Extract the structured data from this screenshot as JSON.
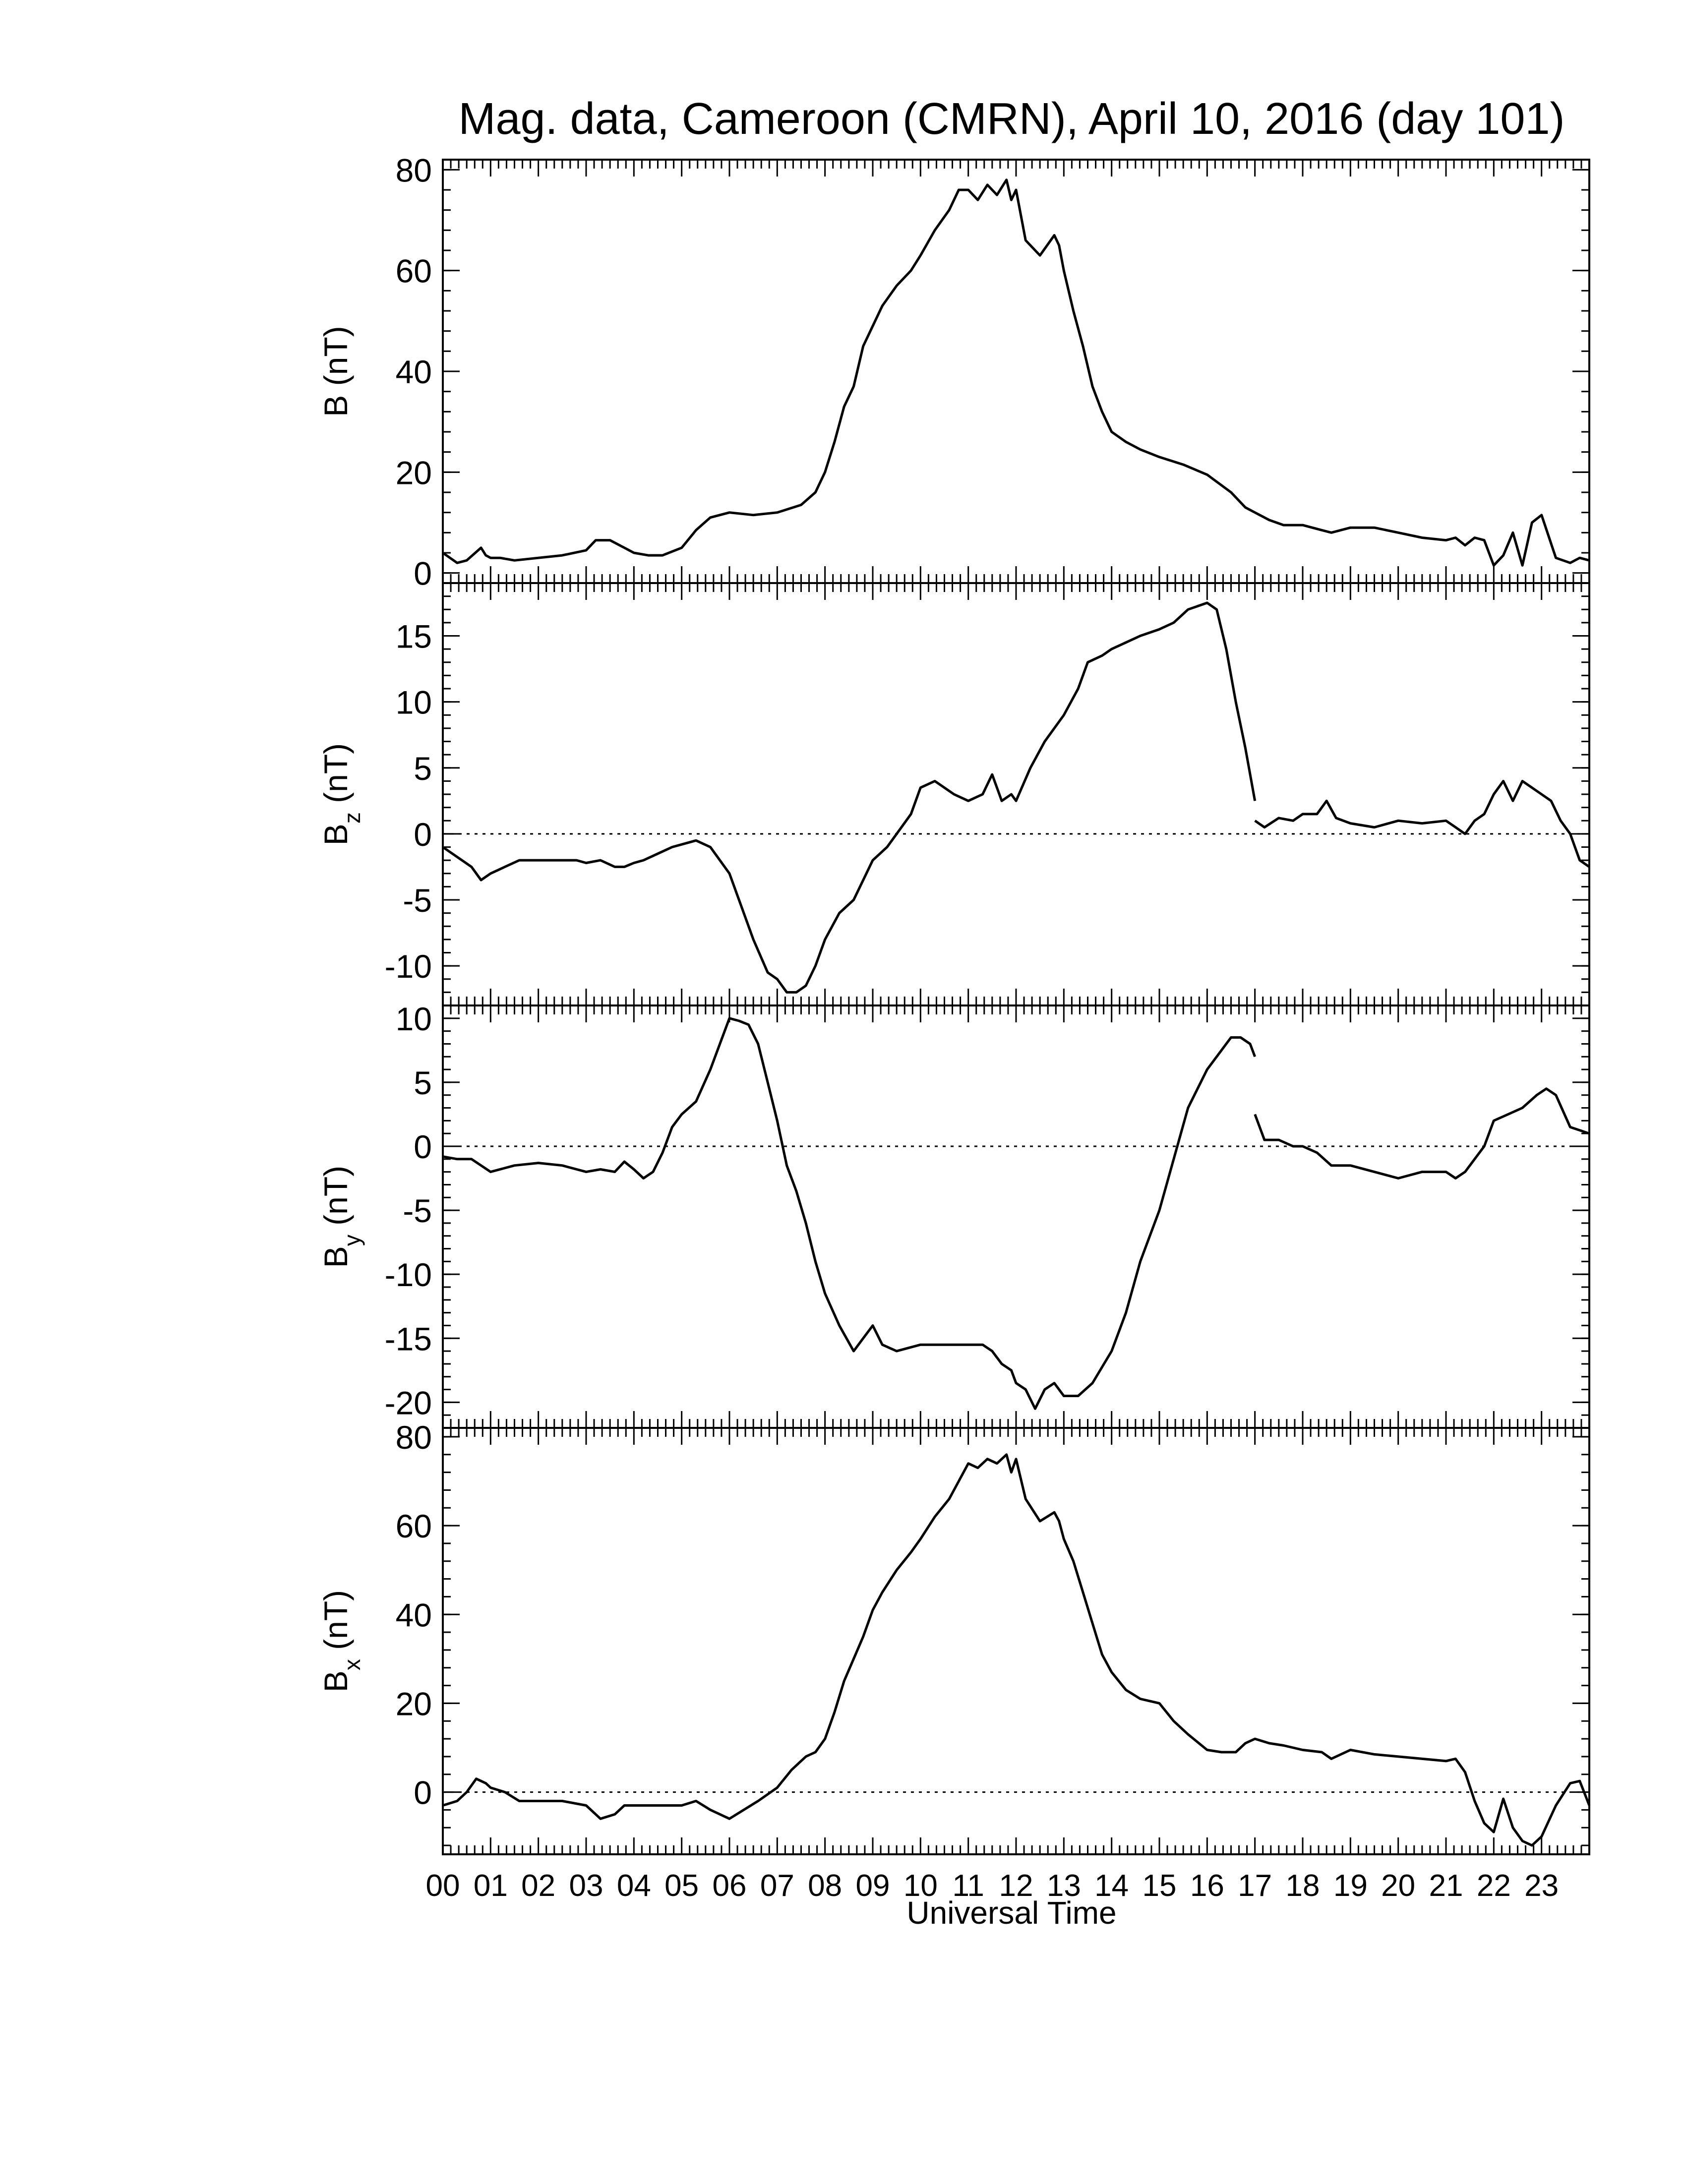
{
  "chart_data": {
    "type": "line",
    "title": "Mag. data, Cameroon (CMRN), April 10, 2016 (day 101)",
    "xlabel": "Universal Time",
    "x_unit": "hours UT",
    "xlim": [
      0,
      24
    ],
    "x_tick_labels": [
      "00",
      "01",
      "02",
      "03",
      "04",
      "05",
      "06",
      "07",
      "08",
      "09",
      "10",
      "11",
      "12",
      "13",
      "14",
      "15",
      "16",
      "17",
      "18",
      "19",
      "20",
      "21",
      "22",
      "23"
    ],
    "line_color": "#000000",
    "zero_line": "dotted",
    "panels": [
      {
        "id": "B",
        "ylabel_main": "B",
        "ylabel_sub": "",
        "ylabel_unit": "(nT)",
        "ylim": [
          -2,
          82
        ],
        "yticks": [
          0,
          20,
          40,
          60,
          80
        ],
        "zero_line": false,
        "x": [
          0,
          0.3,
          0.5,
          0.8,
          0.9,
          1.0,
          1.2,
          1.5,
          2.0,
          2.5,
          3.0,
          3.2,
          3.5,
          3.8,
          4.0,
          4.3,
          4.6,
          5.0,
          5.3,
          5.6,
          6.0,
          6.5,
          7.0,
          7.5,
          7.8,
          8.0,
          8.2,
          8.4,
          8.6,
          8.8,
          9.0,
          9.2,
          9.5,
          9.8,
          10.0,
          10.3,
          10.6,
          10.8,
          11.0,
          11.2,
          11.4,
          11.6,
          11.8,
          11.9,
          12.0,
          12.2,
          12.5,
          12.8,
          12.9,
          13.0,
          13.2,
          13.4,
          13.6,
          13.8,
          14.0,
          14.3,
          14.6,
          15.0,
          15.5,
          16.0,
          16.5,
          16.8,
          17.0,
          17.3,
          17.6,
          18.0,
          18.4,
          18.6,
          19.0,
          19.5,
          20.0,
          20.5,
          21.0,
          21.2,
          21.4,
          21.6,
          21.8,
          22.0,
          22.2,
          22.4,
          22.6,
          22.8,
          23.0,
          23.3,
          23.6,
          23.8,
          24.0
        ],
        "values": [
          4,
          2,
          2.5,
          5,
          3.5,
          3,
          3,
          2.5,
          3,
          3.5,
          4.5,
          6.5,
          6.5,
          5,
          4,
          3.5,
          3.5,
          5,
          8.5,
          11,
          12,
          11.5,
          12,
          13.5,
          16,
          20,
          26,
          33,
          37,
          45,
          49,
          53,
          57,
          60,
          63,
          68,
          72,
          76,
          76,
          74,
          77,
          75,
          78,
          74,
          76,
          66,
          63,
          67,
          65,
          60,
          52,
          45,
          37,
          32,
          28,
          26,
          24.5,
          23,
          21.5,
          19.5,
          16,
          13,
          12,
          10.5,
          9.5,
          9.5,
          8.5,
          8,
          9,
          9,
          8,
          7,
          6.5,
          7,
          5.5,
          7,
          6.5,
          1.5,
          3.5,
          8,
          1.5,
          10,
          11.5,
          3,
          2,
          3,
          2.5
        ]
      },
      {
        "id": "Bz",
        "ylabel_main": "B",
        "ylabel_sub": "z",
        "ylabel_unit": "(nT)",
        "ylim": [
          -13,
          19
        ],
        "yticks": [
          -10,
          -5,
          0,
          5,
          10,
          15
        ],
        "zero_line": true,
        "x": [
          0,
          0.2,
          0.4,
          0.6,
          0.8,
          1.0,
          1.3,
          1.6,
          2.0,
          2.4,
          2.8,
          3.0,
          3.3,
          3.6,
          3.8,
          4.0,
          4.2,
          4.5,
          4.8,
          5.0,
          5.3,
          5.6,
          6.0,
          6.2,
          6.5,
          6.8,
          7.0,
          7.2,
          7.4,
          7.6,
          7.8,
          8.0,
          8.3,
          8.6,
          9.0,
          9.3,
          9.6,
          9.8,
          10.0,
          10.3,
          10.5,
          10.7,
          11.0,
          11.3,
          11.5,
          11.7,
          11.9,
          12.0,
          12.3,
          12.6,
          13.0,
          13.3,
          13.5,
          13.8,
          14.0,
          14.3,
          14.6,
          15.0,
          15.3,
          15.6,
          16.0,
          16.2,
          16.4,
          16.6,
          16.8,
          17.0
        ],
        "values": [
          -1,
          -1.5,
          -2,
          -2.5,
          -3.5,
          -3,
          -2.5,
          -2,
          -2,
          -2,
          -2,
          -2.2,
          -2,
          -2.5,
          -2.5,
          -2.2,
          -2,
          -1.5,
          -1,
          -0.8,
          -0.5,
          -1,
          -3,
          -5,
          -8,
          -10.5,
          -11,
          -12,
          -12,
          -11.5,
          -10,
          -8,
          -6,
          -5,
          -2,
          -1,
          0.5,
          1.5,
          3.5,
          4,
          3.5,
          3,
          2.5,
          3,
          4.5,
          2.5,
          3,
          2.5,
          5,
          7,
          9,
          11,
          13,
          13.5,
          14,
          14.5,
          15,
          15.5,
          16,
          17,
          17.5,
          17,
          14,
          10,
          6.5,
          2.5
        ],
        "x2": [
          17.0,
          17.2,
          17.5,
          17.8,
          18.0,
          18.3,
          18.5,
          18.7,
          19.0,
          19.5,
          20.0,
          20.5,
          21.0,
          21.2,
          21.4,
          21.6,
          21.8,
          22.0,
          22.2,
          22.4,
          22.6,
          22.8,
          23.0,
          23.2,
          23.4,
          23.6,
          23.8,
          24.0
        ],
        "values2": [
          1.0,
          0.5,
          1.2,
          1.0,
          1.5,
          1.5,
          2.5,
          1.2,
          0.8,
          0.5,
          1.0,
          0.8,
          1.0,
          0.5,
          0.0,
          1.0,
          1.5,
          3.0,
          4.0,
          2.5,
          4.0,
          3.5,
          3.0,
          2.5,
          1.0,
          0.0,
          -2.0,
          -2.5
        ]
      },
      {
        "id": "By",
        "ylabel_main": "B",
        "ylabel_sub": "y",
        "ylabel_unit": "(nT)",
        "ylim": [
          -22,
          11
        ],
        "yticks": [
          -20,
          -15,
          -10,
          -5,
          0,
          5,
          10
        ],
        "zero_line": true,
        "x": [
          0,
          0.3,
          0.6,
          0.8,
          1.0,
          1.5,
          2.0,
          2.5,
          3.0,
          3.3,
          3.6,
          3.8,
          4.0,
          4.2,
          4.4,
          4.6,
          4.8,
          5.0,
          5.3,
          5.6,
          5.8,
          6.0,
          6.2,
          6.4,
          6.6,
          6.8,
          7.0,
          7.2,
          7.4,
          7.6,
          7.8,
          8.0,
          8.3,
          8.6,
          8.8,
          9.0,
          9.2,
          9.5,
          10.0,
          10.5,
          11.0,
          11.3,
          11.5,
          11.7,
          11.9,
          12.0,
          12.2,
          12.4,
          12.6,
          12.8,
          13.0,
          13.3,
          13.6,
          14.0,
          14.3,
          14.6,
          15.0,
          15.3,
          15.6,
          16.0,
          16.3,
          16.5,
          16.7,
          16.9,
          17.0
        ],
        "values": [
          -0.8,
          -1,
          -1,
          -1.5,
          -2,
          -1.5,
          -1.3,
          -1.5,
          -2,
          -1.8,
          -2,
          -1.2,
          -1.8,
          -2.5,
          -2,
          -0.5,
          1.5,
          2.5,
          3.5,
          6,
          8,
          10,
          9.8,
          9.5,
          8,
          5,
          2,
          -1.5,
          -3.5,
          -6,
          -9,
          -11.5,
          -14,
          -16,
          -15,
          -14,
          -15.5,
          -16,
          -15.5,
          -15.5,
          -15.5,
          -15.5,
          -16,
          -17,
          -17.5,
          -18.5,
          -19,
          -20.5,
          -19,
          -18.5,
          -19.5,
          -19.5,
          -18.5,
          -16,
          -13,
          -9,
          -5,
          -1,
          3,
          6,
          7.5,
          8.5,
          8.5,
          8,
          7
        ],
        "x2": [
          17.0,
          17.2,
          17.5,
          17.8,
          18.0,
          18.3,
          18.6,
          19.0,
          19.5,
          20.0,
          20.5,
          21.0,
          21.2,
          21.4,
          21.6,
          21.8,
          22.0,
          22.3,
          22.6,
          22.9,
          23.1,
          23.3,
          23.6,
          24.0
        ],
        "values2": [
          2.5,
          0.5,
          0.5,
          0.0,
          0.0,
          -0.5,
          -1.5,
          -1.5,
          -2.0,
          -2.5,
          -2.0,
          -2.0,
          -2.5,
          -2.0,
          -1.0,
          0.0,
          2.0,
          2.5,
          3.0,
          4.0,
          4.5,
          4.0,
          1.5,
          1.0
        ]
      },
      {
        "id": "Bx",
        "ylabel_main": "B",
        "ylabel_sub": "x",
        "ylabel_unit": "(nT)",
        "ylim": [
          -14,
          82
        ],
        "yticks": [
          0,
          20,
          40,
          60,
          80
        ],
        "zero_line": true,
        "x": [
          0,
          0.3,
          0.5,
          0.7,
          0.9,
          1.0,
          1.3,
          1.6,
          2.0,
          2.5,
          3.0,
          3.3,
          3.6,
          3.8,
          4.0,
          4.5,
          5.0,
          5.3,
          5.6,
          6.0,
          6.3,
          6.6,
          7.0,
          7.3,
          7.6,
          7.8,
          8.0,
          8.2,
          8.4,
          8.6,
          8.8,
          9.0,
          9.2,
          9.5,
          9.8,
          10.0,
          10.3,
          10.6,
          10.8,
          11.0,
          11.2,
          11.4,
          11.6,
          11.8,
          11.9,
          12.0,
          12.2,
          12.5,
          12.8,
          12.9,
          13.0,
          13.2,
          13.4,
          13.6,
          13.8,
          14.0,
          14.3,
          14.6,
          15.0,
          15.3,
          15.6,
          16.0,
          16.3,
          16.6,
          16.8,
          17.0,
          17.3,
          17.6,
          18.0,
          18.4,
          18.6,
          19.0,
          19.5,
          20.0,
          20.5,
          21.0,
          21.2,
          21.4,
          21.6,
          21.8,
          22.0,
          22.2,
          22.4,
          22.6,
          22.8,
          23.0,
          23.3,
          23.6,
          23.8,
          24.0
        ],
        "values": [
          -3,
          -2,
          0,
          3,
          2,
          1,
          0,
          -2,
          -2,
          -2,
          -3,
          -6,
          -5,
          -3,
          -3,
          -3,
          -3,
          -2,
          -4,
          -6,
          -4,
          -2,
          1,
          5,
          8,
          9,
          12,
          18,
          25,
          30,
          35,
          41,
          45,
          50,
          54,
          57,
          62,
          66,
          70,
          74,
          73,
          75,
          74,
          76,
          72,
          75,
          66,
          61,
          63,
          61,
          57,
          52,
          45,
          38,
          31,
          27,
          23,
          21,
          20,
          16,
          13,
          9.5,
          9,
          9,
          11,
          12,
          11,
          10.5,
          9.5,
          9,
          7.5,
          9.5,
          8.5,
          8,
          7.5,
          7,
          7.5,
          4.5,
          -2,
          -7,
          -9,
          -1.5,
          -8,
          -11,
          -12,
          -10,
          -3,
          2,
          2.5,
          -3
        ]
      }
    ]
  }
}
